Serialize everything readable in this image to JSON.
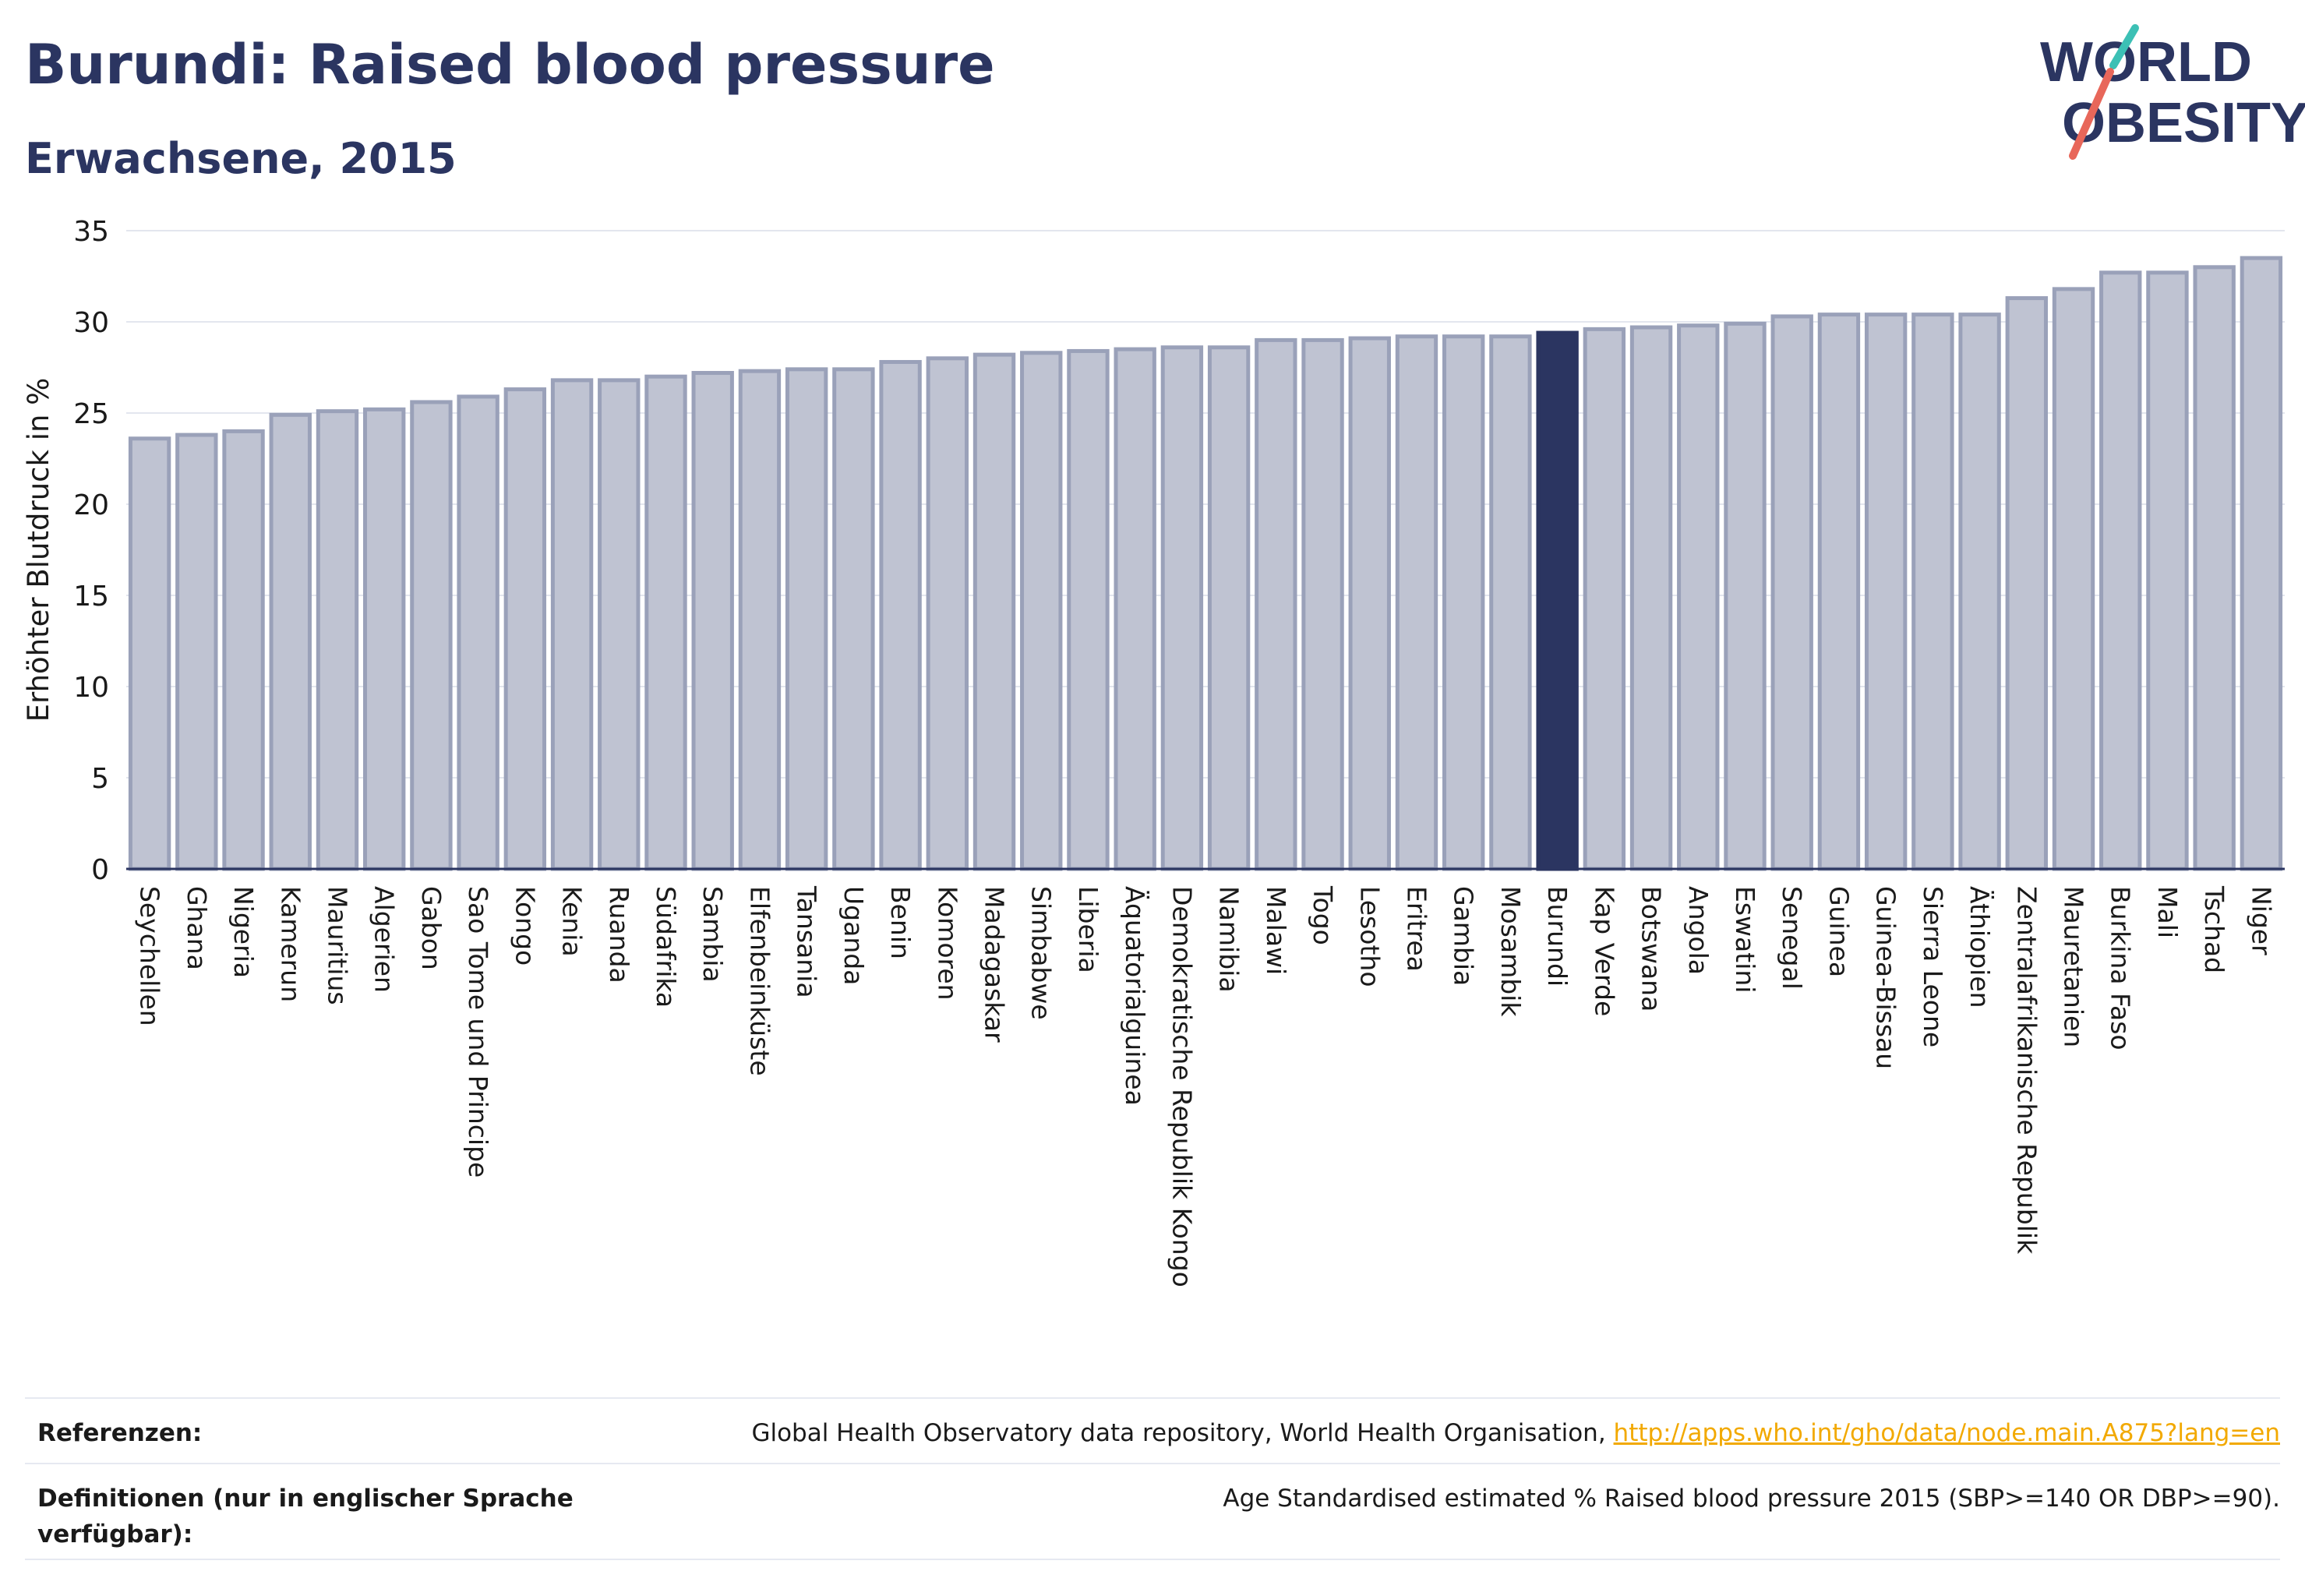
{
  "header": {
    "title": "Burundi: Raised blood pressure",
    "subtitle": "Erwachsene, 2015"
  },
  "logo": {
    "line1": "WORLD",
    "line2": "OBESITY",
    "colors": {
      "text": "#2b3561",
      "slash_teal": "#3cc0b5",
      "slash_red": "#e8675a"
    }
  },
  "chart_data": {
    "type": "bar",
    "ylabel": "Erhöhter Blutdruck in %",
    "ylim": [
      0,
      35
    ],
    "yticks": [
      0,
      5,
      10,
      15,
      20,
      25,
      30,
      35
    ],
    "grid": true,
    "highlight": "Burundi",
    "colors": {
      "bar": "#bfc3d2",
      "bar_edge": "#9aa1b9",
      "highlight": "#2b3561",
      "grid": "#e3e6ee"
    },
    "categories": [
      "Seychellen",
      "Ghana",
      "Nigeria",
      "Kamerun",
      "Mauritius",
      "Algerien",
      "Gabon",
      "Sao Tome und Principe",
      "Kongo",
      "Kenia",
      "Ruanda",
      "Südafrika",
      "Sambia",
      "Elfenbeinküste",
      "Tansania",
      "Uganda",
      "Benin",
      "Komoren",
      "Madagaskar",
      "Simbabwe",
      "Liberia",
      "Äquatorialguinea",
      "Demokratische Republik Kongo",
      "Namibia",
      "Malawi",
      "Togo",
      "Lesotho",
      "Eritrea",
      "Gambia",
      "Mosambik",
      "Burundi",
      "Kap Verde",
      "Botswana",
      "Angola",
      "Eswatini",
      "Senegal",
      "Guinea",
      "Guinea-Bissau",
      "Sierra Leone",
      "Äthiopien",
      "Zentralafrikanische Republik",
      "Mauretanien",
      "Burkina Faso",
      "Mali",
      "Tschad",
      "Niger"
    ],
    "values": [
      23.6,
      23.8,
      24.0,
      24.9,
      25.1,
      25.2,
      25.6,
      25.9,
      26.3,
      26.8,
      26.8,
      27.0,
      27.2,
      27.3,
      27.4,
      27.4,
      27.8,
      28.0,
      28.2,
      28.3,
      28.4,
      28.5,
      28.6,
      28.6,
      29.0,
      29.0,
      29.1,
      29.2,
      29.2,
      29.2,
      29.4,
      29.6,
      29.7,
      29.8,
      29.9,
      30.3,
      30.4,
      30.4,
      30.4,
      30.4,
      31.3,
      31.8,
      32.7,
      32.7,
      33.0,
      33.5
    ]
  },
  "footer": {
    "references_label": "Referenzen:",
    "references_text": "Global Health Observatory data repository, World Health Organisation, ",
    "references_link": "http://apps.who.int/gho/data/node.main.A875?lang=en",
    "definitions_label": "Definitionen (nur in englischer Sprache verfügbar):",
    "definitions_text": "Age Standardised estimated % Raised blood pressure 2015 (SBP>=140 OR DBP>=90)."
  }
}
